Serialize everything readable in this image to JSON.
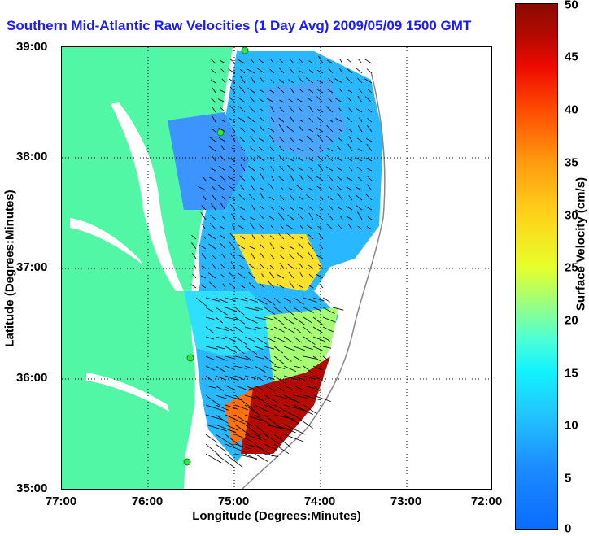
{
  "title": "Southern Mid-Atlantic Raw Velocities (1 Day Avg) 2009/05/09 1500 GMT",
  "x_axis": {
    "label": "Longitude (Degrees:Minutes)",
    "ticks": [
      "77:00",
      "76:00",
      "75:00",
      "74:00",
      "73:00",
      "72:00"
    ]
  },
  "y_axis": {
    "label": "Latitude (Degrees:Minutes)",
    "ticks": [
      "39:00",
      "38:00",
      "37:00",
      "36:00",
      "35:00"
    ]
  },
  "colorbar": {
    "label": "Surface Velocity (cm/s)",
    "ticks": [
      "50",
      "45",
      "40",
      "35",
      "30",
      "25",
      "20",
      "15",
      "10",
      "5",
      "0"
    ],
    "min": 0,
    "max": 50
  },
  "colors": {
    "land": "#52f7a6",
    "title": "#1b1bff",
    "vector": "#000000",
    "station": "#35e24a"
  }
}
